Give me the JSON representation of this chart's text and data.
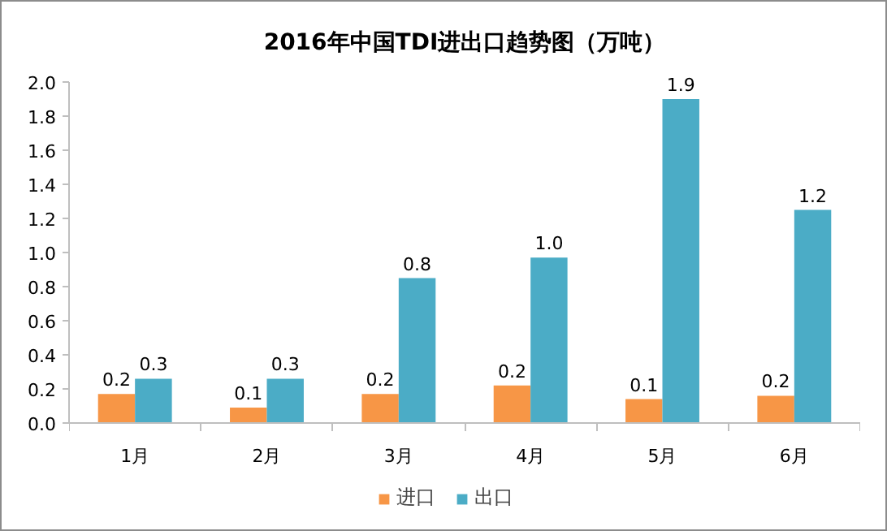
{
  "chart_data": {
    "type": "bar",
    "title": "2016年中国TDI进出口趋势图（万吨）",
    "categories": [
      "1月",
      "2月",
      "3月",
      "4月",
      "5月",
      "6月"
    ],
    "series": [
      {
        "name": "进口",
        "color": "#f79646",
        "values": [
          0.17,
          0.09,
          0.17,
          0.22,
          0.14,
          0.16
        ],
        "value_labels": [
          "0.2",
          "0.1",
          "0.2",
          "0.2",
          "0.1",
          "0.2"
        ]
      },
      {
        "name": "出口",
        "color": "#4bacc6",
        "values": [
          0.26,
          0.26,
          0.85,
          0.97,
          1.9,
          1.25
        ],
        "value_labels": [
          "0.3",
          "0.3",
          "0.8",
          "1.0",
          "1.9",
          "1.2"
        ]
      }
    ],
    "ylim": [
      0,
      2
    ],
    "yticks": [
      {
        "value": 0,
        "label": "0.0"
      },
      0.2,
      0.4,
      0.6,
      0.8,
      {
        "value": 1,
        "label": "1.0"
      },
      1.2,
      1.4,
      1.6,
      1.8,
      {
        "value": 2,
        "label": "2.0"
      }
    ],
    "grid": false,
    "legend": "bottom"
  }
}
